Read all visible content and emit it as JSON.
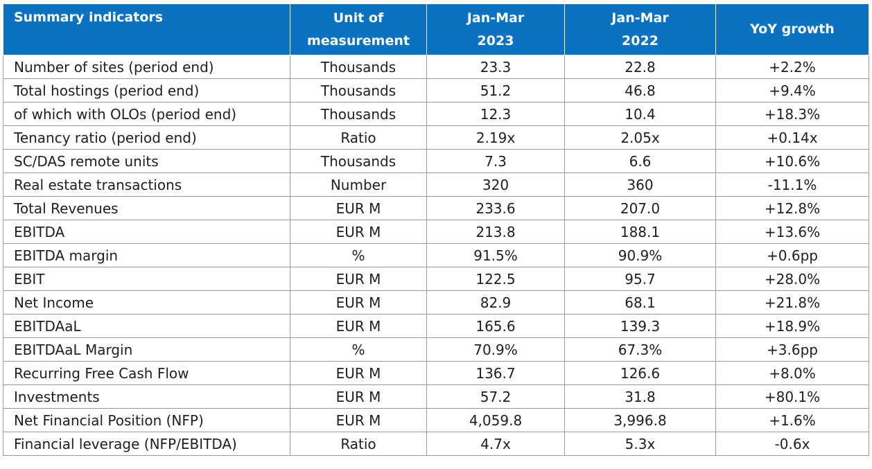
{
  "table": {
    "headers": [
      "Summary indicators",
      "Unit of\nmeasurement",
      "Jan-Mar\n2023",
      "Jan-Mar\n2022",
      "YoY growth"
    ],
    "rows": [
      [
        "Number of sites (period end)",
        "Thousands",
        "23.3",
        "22.8",
        "+2.2%"
      ],
      [
        "Total hostings (period end)",
        "Thousands",
        "51.2",
        "46.8",
        "+9.4%"
      ],
      [
        "of which with OLOs (period end)",
        "Thousands",
        "12.3",
        "10.4",
        "+18.3%"
      ],
      [
        "Tenancy ratio (period end)",
        "Ratio",
        "2.19x",
        "2.05x",
        "+0.14x"
      ],
      [
        "SC/DAS remote units",
        "Thousands",
        "7.3",
        "6.6",
        "+10.6%"
      ],
      [
        "Real estate transactions",
        "Number",
        "320",
        "360",
        "-11.1%"
      ],
      [
        "Total Revenues",
        "EUR M",
        "233.6",
        "207.0",
        "+12.8%"
      ],
      [
        "EBITDA",
        "EUR M",
        "213.8",
        "188.1",
        "+13.6%"
      ],
      [
        "EBITDA margin",
        "%",
        "91.5%",
        "90.9%",
        "+0.6pp"
      ],
      [
        "EBIT",
        "EUR M",
        "122.5",
        "95.7",
        "+28.0%"
      ],
      [
        "Net Income",
        "EUR M",
        "82.9",
        "68.1",
        "+21.8%"
      ],
      [
        "EBITDAaL",
        "EUR M",
        "165.6",
        "139.3",
        "+18.9%"
      ],
      [
        "EBITDAaL Margin",
        "%",
        "70.9%",
        "67.3%",
        "+3.6pp"
      ],
      [
        "Recurring Free Cash Flow",
        "EUR M",
        "136.7",
        "126.6",
        "+8.0%"
      ],
      [
        "Investments",
        "EUR M",
        "57.2",
        "31.8",
        "+80.1%"
      ],
      [
        "Net Financial Position (NFP)",
        "EUR M",
        "4,059.8",
        "3,996.8",
        "+1.6%"
      ],
      [
        "Financial leverage (NFP/EBITDA)",
        "Ratio",
        "4.7x",
        "5.3x",
        "-0.6x"
      ]
    ]
  },
  "colors": {
    "header_background": "#0b72c2",
    "header_text": "#ffffff",
    "border": "#9a9a9a"
  }
}
